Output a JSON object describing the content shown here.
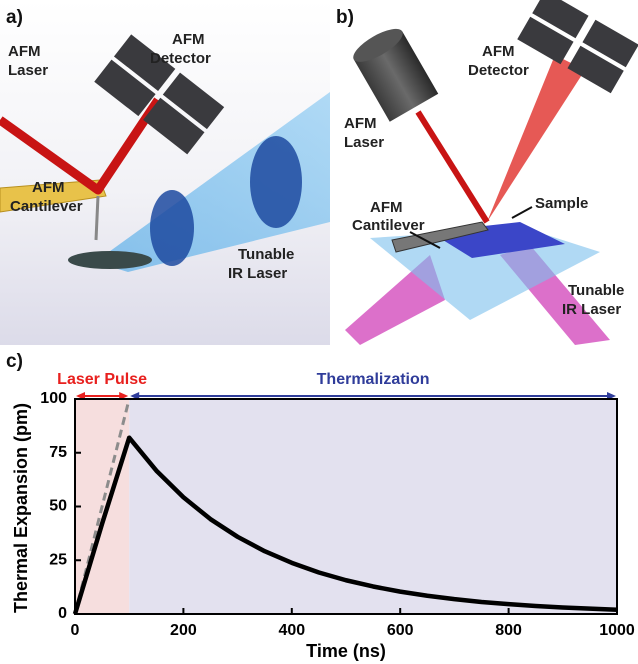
{
  "panel_a": {
    "label": "a)",
    "laser_label": [
      "AFM",
      "Laser"
    ],
    "detector_label": [
      "AFM",
      "Detector"
    ],
    "cantilever_label": [
      "AFM",
      "Cantilever"
    ],
    "ir_label": [
      "Tunable",
      "IR Laser"
    ]
  },
  "panel_b": {
    "label": "b)",
    "detector_label": [
      "AFM",
      "Detector"
    ],
    "laser_label": [
      "AFM",
      "Laser"
    ],
    "cantilever_label": [
      "AFM",
      "Cantilever"
    ],
    "sample_label": "Sample",
    "ir_label": [
      "Tunable",
      "IR Laser"
    ]
  },
  "chart_data": {
    "type": "line",
    "panel_label": "c)",
    "x_label": "Time (ns)",
    "y_label": "Thermal Expansion (pm)",
    "x": [
      0,
      25,
      50,
      75,
      100,
      150,
      200,
      250,
      300,
      350,
      400,
      450,
      500,
      550,
      600,
      650,
      700,
      750,
      800,
      850,
      900,
      950,
      1000
    ],
    "series": [
      {
        "color": "#000000",
        "values": [
          0,
          21,
          42,
          62,
          82,
          66.7,
          54.3,
          44.1,
          35.9,
          29.2,
          23.8,
          19.3,
          15.7,
          12.8,
          10.4,
          8.5,
          6.9,
          5.6,
          4.6,
          3.7,
          3.0,
          2.5,
          2.0
        ]
      }
    ],
    "dashed_line": {
      "color": "#8c8c8c",
      "x": [
        0,
        100
      ],
      "values": [
        0,
        100
      ]
    },
    "regions": [
      {
        "label": "Laser Pulse",
        "start": 0,
        "end": 100,
        "color": "#f6dede",
        "text_color": "#e8201e"
      },
      {
        "label": "Thermalization",
        "start": 100,
        "end": 1000,
        "color": "#e3e1ef",
        "text_color": "#2f3c9a"
      }
    ],
    "xlim": [
      0,
      1000
    ],
    "xticks": [
      0,
      200,
      400,
      600,
      800,
      1000
    ],
    "ylim": [
      0,
      100
    ],
    "yticks": [
      0,
      25,
      50,
      75,
      100
    ]
  }
}
